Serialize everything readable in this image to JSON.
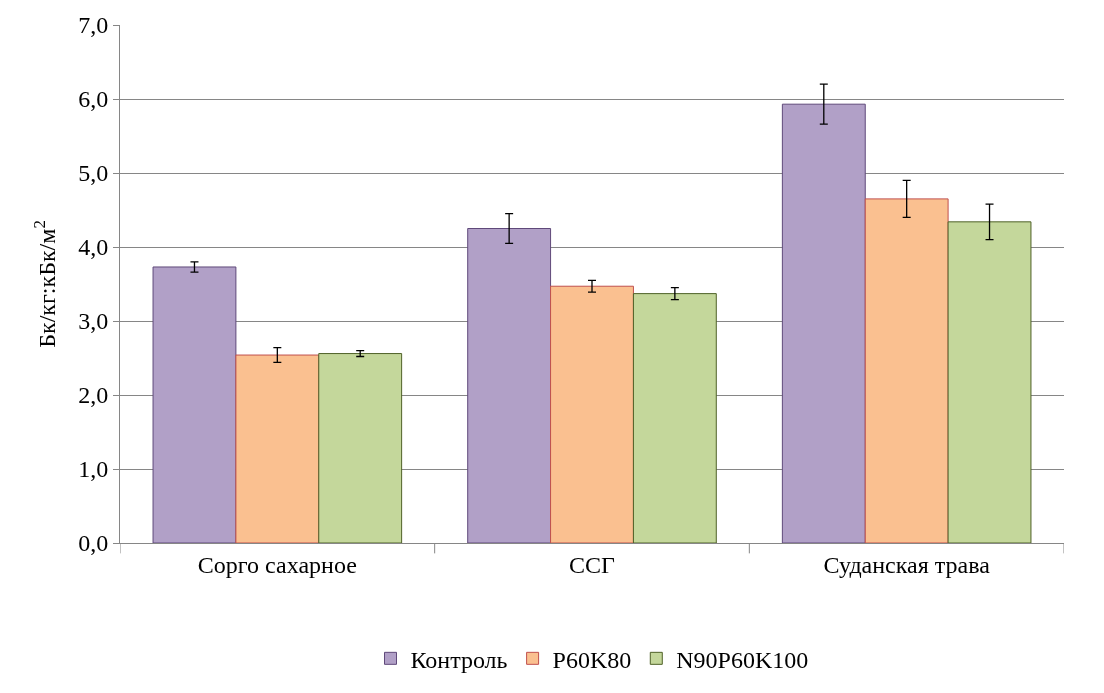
{
  "chart_data": {
    "type": "bar",
    "ylabel": "Бк/кг:кБк/м$^{2}$",
    "categories": [
      "Сорго сахарное",
      "ССГ",
      "Суданская трава"
    ],
    "series": [
      {
        "name": "Контроль",
        "color": "#b1a0c7",
        "values": [
          3.73,
          4.25,
          5.93
        ],
        "errors": [
          0.07,
          0.2,
          0.27
        ]
      },
      {
        "name": "P60K80",
        "color": "#fac090",
        "values": [
          2.54,
          3.47,
          4.65
        ],
        "errors": [
          0.1,
          0.08,
          0.25
        ]
      },
      {
        "name": "N90P60K100",
        "color": "#c4d79b",
        "values": [
          2.56,
          3.37,
          4.34
        ],
        "errors": [
          0.04,
          0.08,
          0.24
        ]
      }
    ],
    "ylim": [
      0,
      7
    ],
    "yticks": [
      {
        "value": 0,
        "label": "0,0"
      },
      {
        "value": 1,
        "label": "1,0"
      },
      {
        "value": 2,
        "label": "2,0"
      },
      {
        "value": 3,
        "label": "3,0"
      },
      {
        "value": 4,
        "label": "4,0"
      },
      {
        "value": 5,
        "label": "5,0"
      },
      {
        "value": 6,
        "label": "6,0"
      },
      {
        "value": 7,
        "label": "7,0"
      }
    ],
    "grid": "y",
    "legend": "bottom"
  }
}
